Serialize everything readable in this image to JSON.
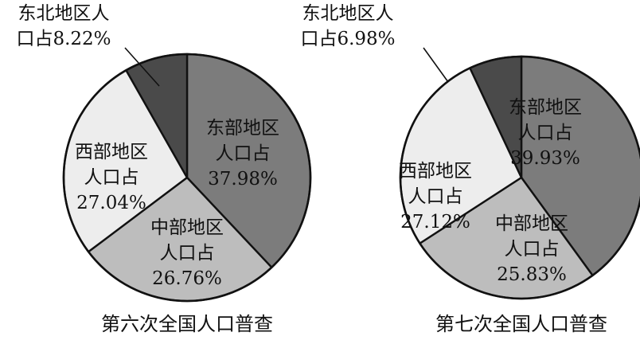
{
  "chart_data": [
    {
      "type": "pie",
      "title": "第六次全国人口普查",
      "slices": [
        {
          "lines": [
            "东部地区",
            "人口占",
            "37.98%"
          ],
          "value": 37.98,
          "color": "#7c7c7c"
        },
        {
          "lines": [
            "中部地区",
            "人口占",
            "26.76%"
          ],
          "value": 26.76,
          "color": "#bdbdbd"
        },
        {
          "lines": [
            "西部地区",
            "人口占",
            "27.04%"
          ],
          "value": 27.04,
          "color": "#ededed"
        },
        {
          "lines": [
            "东北地区人",
            "口占8.22%"
          ],
          "value": 8.22,
          "color": "#4a4a4a"
        }
      ]
    },
    {
      "type": "pie",
      "title": "第七次全国人口普查",
      "slices": [
        {
          "lines": [
            "东部地区",
            "人口占",
            "39.93%"
          ],
          "value": 39.93,
          "color": "#7c7c7c"
        },
        {
          "lines": [
            "中部地区",
            "人口占",
            "25.83%"
          ],
          "value": 25.83,
          "color": "#bdbdbd"
        },
        {
          "lines": [
            "西部地区",
            "人口占",
            "27.12%"
          ],
          "value": 27.12,
          "color": "#ededed"
        },
        {
          "lines": [
            "东北地区人",
            "口占6.98%"
          ],
          "value": 6.98,
          "color": "#4a4a4a"
        }
      ]
    }
  ]
}
